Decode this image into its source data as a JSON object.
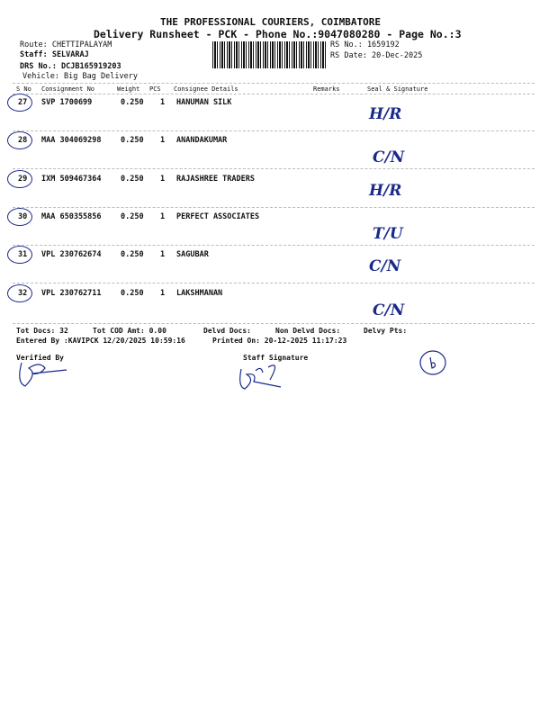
{
  "header": {
    "company": "THE PROFESSIONAL COURIERS, COIMBATORE",
    "subtitle": "Delivery Runsheet - PCK - Phone No.:9047080280 - Page No.:3",
    "route": "Route: CHETTIPALAYAM",
    "staff": "Staff: SELVARAJ",
    "drs": "DRS No.: DCJB165919203",
    "vehicle": "Vehicle: Big Bag Delivery",
    "rs_no": "RS No.: 1659192",
    "rs_date": "RS Date: 20-Dec-2025"
  },
  "columns": [
    "S No",
    "Consignment No",
    "Weight",
    "PCS",
    "Consignee Details",
    "Remarks",
    "Seal & Signature"
  ],
  "rows": [
    {
      "sno": "27",
      "consignment": "SVP 1700699",
      "weight": "0.250",
      "pcs": "1",
      "consignee": "HANUMAN SILK",
      "signature": "H/R"
    },
    {
      "sno": "28",
      "consignment": "MAA 304069298",
      "weight": "0.250",
      "pcs": "1",
      "consignee": "ANANDAKUMAR",
      "signature": "C/N"
    },
    {
      "sno": "29",
      "consignment": "IXM 509467364",
      "weight": "0.250",
      "pcs": "1",
      "consignee": "RAJASHREE TRADERS",
      "signature": "H/R"
    },
    {
      "sno": "30",
      "consignment": "MAA 650355856",
      "weight": "0.250",
      "pcs": "1",
      "consignee": "PERFECT ASSOCIATES",
      "signature": "T/U"
    },
    {
      "sno": "31",
      "consignment": "VPL 230762674",
      "weight": "0.250",
      "pcs": "1",
      "consignee": "SAGUBAR",
      "signature": "C/N"
    },
    {
      "sno": "32",
      "consignment": "VPL 230762711",
      "weight": "0.250",
      "pcs": "1",
      "consignee": "LAKSHMANAN",
      "signature": "C/N"
    }
  ],
  "footer": {
    "tot_docs": "Tot Docs:  32",
    "tot_cod": "Tot COD Amt:   0.00",
    "delvd": "Delvd Docs:",
    "non_delvd": "Non Delvd Docs:",
    "delvy_pts": "Delvy Pts:",
    "entered_by": "Entered By :KAVIPCK 12/20/2025 10:59:16",
    "printed_on": "Printed On: 20-12-2025 11:17:23",
    "verified_by": "Verified By",
    "staff_signature": "Staff Signature"
  }
}
